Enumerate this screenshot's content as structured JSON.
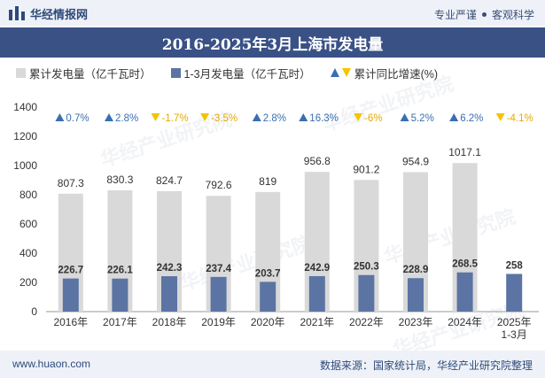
{
  "header": {
    "brand": "华经情报网",
    "slogan_left": "专业严谨",
    "slogan_right": "客观科学"
  },
  "footer": {
    "url": "www.huaon.com",
    "source": "数据来源：国家统计局，华经产业研究院整理"
  },
  "watermark": "华经产业研究院",
  "colors": {
    "cumulative_bar": "#d9d9d9",
    "period_bar": "#5b74a3",
    "growth_up": "#3a6fb0",
    "growth_down": "#f5c400",
    "title_bg": "#3a5186"
  },
  "chart_data": {
    "type": "bar",
    "title": "2016-2025年3月上海市发电量",
    "categories": [
      "2016年",
      "2017年",
      "2018年",
      "2019年",
      "2020年",
      "2021年",
      "2022年",
      "2023年",
      "2024年",
      "2025年\n1-3月"
    ],
    "series": [
      {
        "name": "累计发电量（亿千瓦时）",
        "values": [
          807.3,
          830.3,
          824.7,
          792.6,
          819,
          956.8,
          901.2,
          954.9,
          1017.1,
          null
        ]
      },
      {
        "name": "1-3月发电量（亿千瓦时）",
        "values": [
          226.7,
          226.1,
          242.3,
          237.4,
          203.7,
          242.9,
          250.3,
          228.9,
          268.5,
          258
        ]
      }
    ],
    "growth": {
      "name": "累计同比增速(%)",
      "labels": [
        "0.7%",
        "2.8%",
        "-1.7%",
        "-3.5%",
        "2.8%",
        "16.3%",
        "-6%",
        "5.2%",
        "6.2%",
        "-4.1%"
      ],
      "direction": [
        "up",
        "up",
        "down",
        "down",
        "up",
        "up",
        "down",
        "up",
        "up",
        "down"
      ]
    },
    "ylim": [
      0,
      1400
    ],
    "yticks": [
      0,
      200,
      400,
      600,
      800,
      1000,
      1200,
      1400
    ],
    "legend_position": "top-left"
  }
}
